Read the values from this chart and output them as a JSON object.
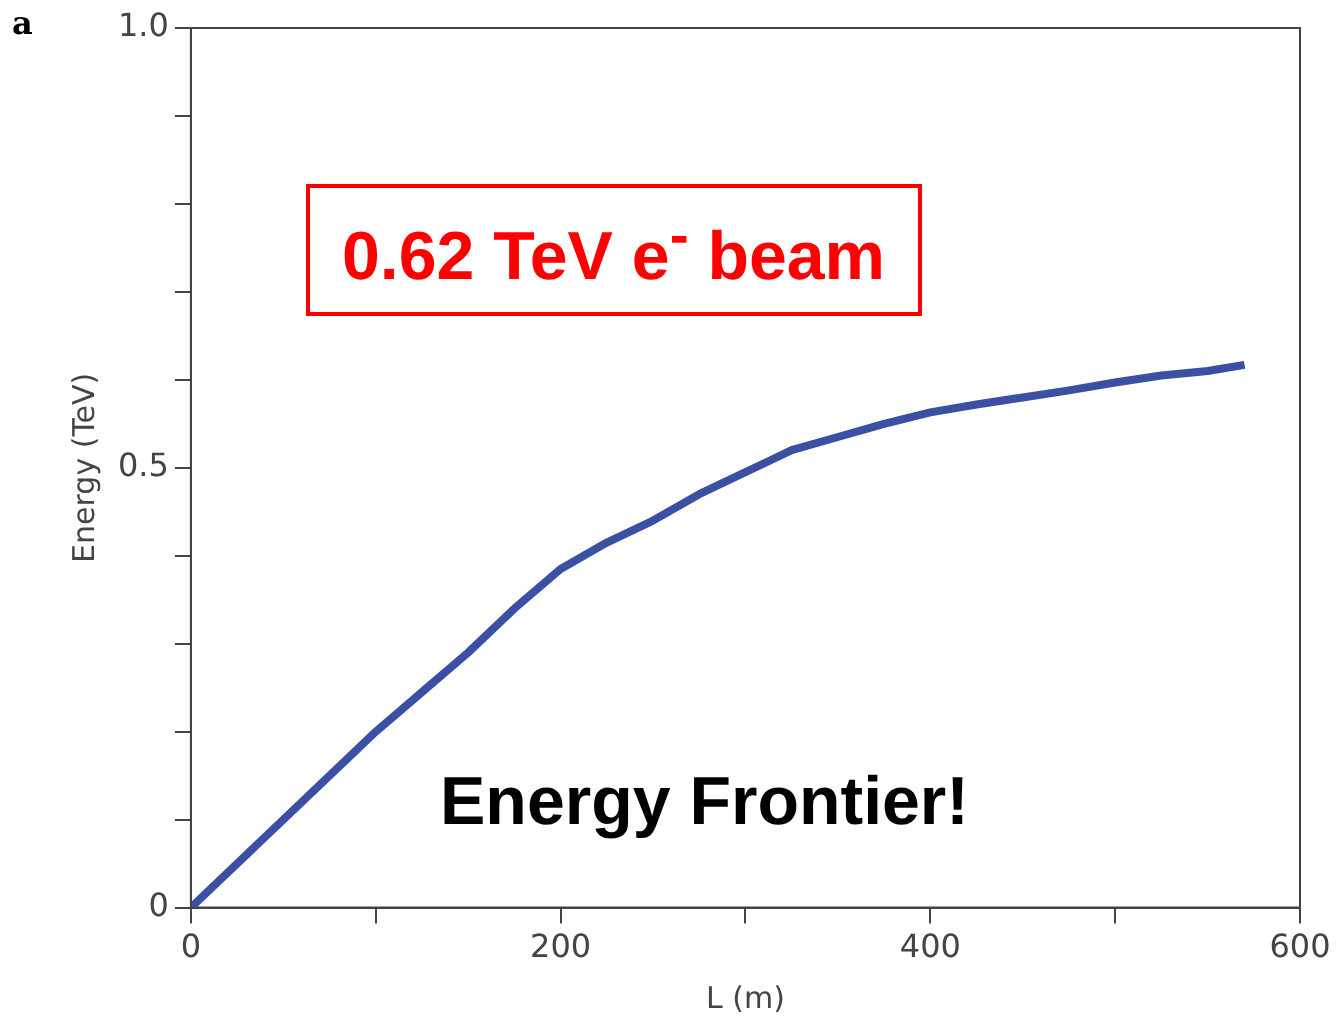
{
  "chart_data": {
    "type": "line",
    "xlabel": "L (m)",
    "ylabel": "Energy (TeV)",
    "x": [
      0,
      25,
      50,
      75,
      100,
      125,
      150,
      175,
      200,
      225,
      250,
      275,
      300,
      325,
      350,
      375,
      400,
      425,
      450,
      475,
      500,
      525,
      550,
      570
    ],
    "series": [
      {
        "color": "#3b4fa3",
        "values": [
          0,
          0.05,
          0.1,
          0.15,
          0.2,
          0.245,
          0.29,
          0.34,
          0.385,
          0.415,
          0.44,
          0.47,
          0.495,
          0.52,
          0.535,
          0.55,
          0.563,
          0.572,
          0.58,
          0.588,
          0.597,
          0.605,
          0.61,
          0.617
        ]
      }
    ],
    "xlim": [
      0,
      600
    ],
    "xticks": [
      0,
      {
        "value": 100,
        "label": null
      },
      200,
      {
        "value": 300,
        "label": null
      },
      400,
      {
        "value": 500,
        "label": null
      },
      600
    ],
    "ylim": [
      0,
      1
    ],
    "yticks": [
      0,
      {
        "value": 0.1,
        "label": null
      },
      {
        "value": 0.2,
        "label": null
      },
      {
        "value": 0.3,
        "label": null
      },
      {
        "value": 0.4,
        "label": null
      },
      0.5,
      {
        "value": 0.6,
        "label": null
      },
      {
        "value": 0.7,
        "label": null
      },
      {
        "value": 0.8,
        "label": null
      },
      {
        "value": 0.9,
        "label": null
      },
      {
        "value": 1,
        "label": "1.0"
      }
    ],
    "grid": false,
    "legend": false,
    "marker": "none",
    "line_style": "solid",
    "annotations": [
      "a",
      "0.62 TeV e$^{-}$ beam",
      "Energy Frontier!"
    ]
  }
}
